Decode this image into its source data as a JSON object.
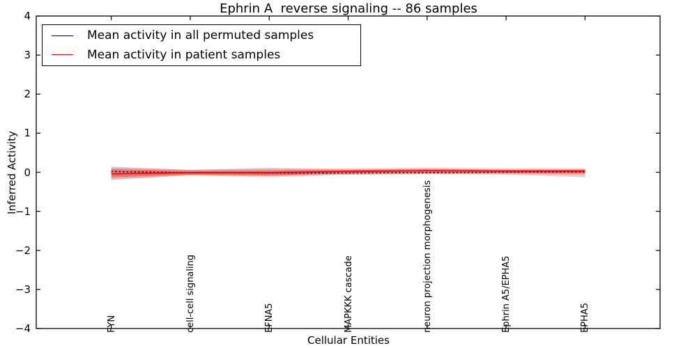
{
  "chart_data": {
    "type": "line",
    "title": "Ephrin A  reverse signaling -- 86 samples",
    "xlabel": "Cellular Entities",
    "ylabel": "Inferred Activity",
    "ylim": [
      -4,
      4
    ],
    "yticks": [
      4,
      3,
      2,
      1,
      0,
      -1,
      -2,
      -3,
      -4
    ],
    "grid": false,
    "legend_position": "upper left",
    "categories": [
      "FYN",
      "cell-cell signaling",
      "EFNA5",
      "MAPKKK cascade",
      "neuron projection morphogenesis",
      "Ephrin A5/EPHA5",
      "EPHA5"
    ],
    "series": [
      {
        "name": "Mean activity in all permuted samples",
        "color": "#000000",
        "style": "dotted",
        "width": 1.4,
        "values": [
          0.02,
          -0.01,
          -0.02,
          -0.02,
          -0.01,
          0.0,
          0.01
        ]
      },
      {
        "name": "Mean activity in patient samples",
        "color": "#ff0000",
        "style": "solid",
        "width": 1.8,
        "values": [
          -0.04,
          -0.01,
          -0.01,
          0.02,
          0.04,
          0.03,
          0.03
        ]
      }
    ],
    "bands": [
      {
        "name": "permuted-samples-spread",
        "color": "rgba(130,130,130,0.30)",
        "upper": [
          0.15,
          0.06,
          0.12,
          0.06,
          0.05,
          0.05,
          0.06
        ],
        "lower": [
          -0.2,
          -0.08,
          -0.1,
          -0.06,
          -0.05,
          -0.06,
          -0.13
        ]
      },
      {
        "name": "patient-samples-spread-outer",
        "color": "rgba(255,60,60,0.25)",
        "upper": [
          0.12,
          0.07,
          0.09,
          0.1,
          0.12,
          0.1,
          0.1
        ],
        "lower": [
          -0.18,
          -0.08,
          -0.13,
          -0.06,
          -0.05,
          -0.05,
          -0.07
        ]
      },
      {
        "name": "patient-samples-spread-inner",
        "color": "rgba(255,0,0,0.35)",
        "upper": [
          0.08,
          0.04,
          0.05,
          0.07,
          0.09,
          0.07,
          0.07
        ],
        "lower": [
          -0.13,
          -0.06,
          -0.08,
          -0.03,
          -0.02,
          -0.02,
          -0.03
        ]
      }
    ],
    "legend": [
      {
        "label": "Mean activity in all permuted samples",
        "color": "#000000"
      },
      {
        "label": "Mean activity in patient samples",
        "color": "#ff0000"
      }
    ]
  }
}
